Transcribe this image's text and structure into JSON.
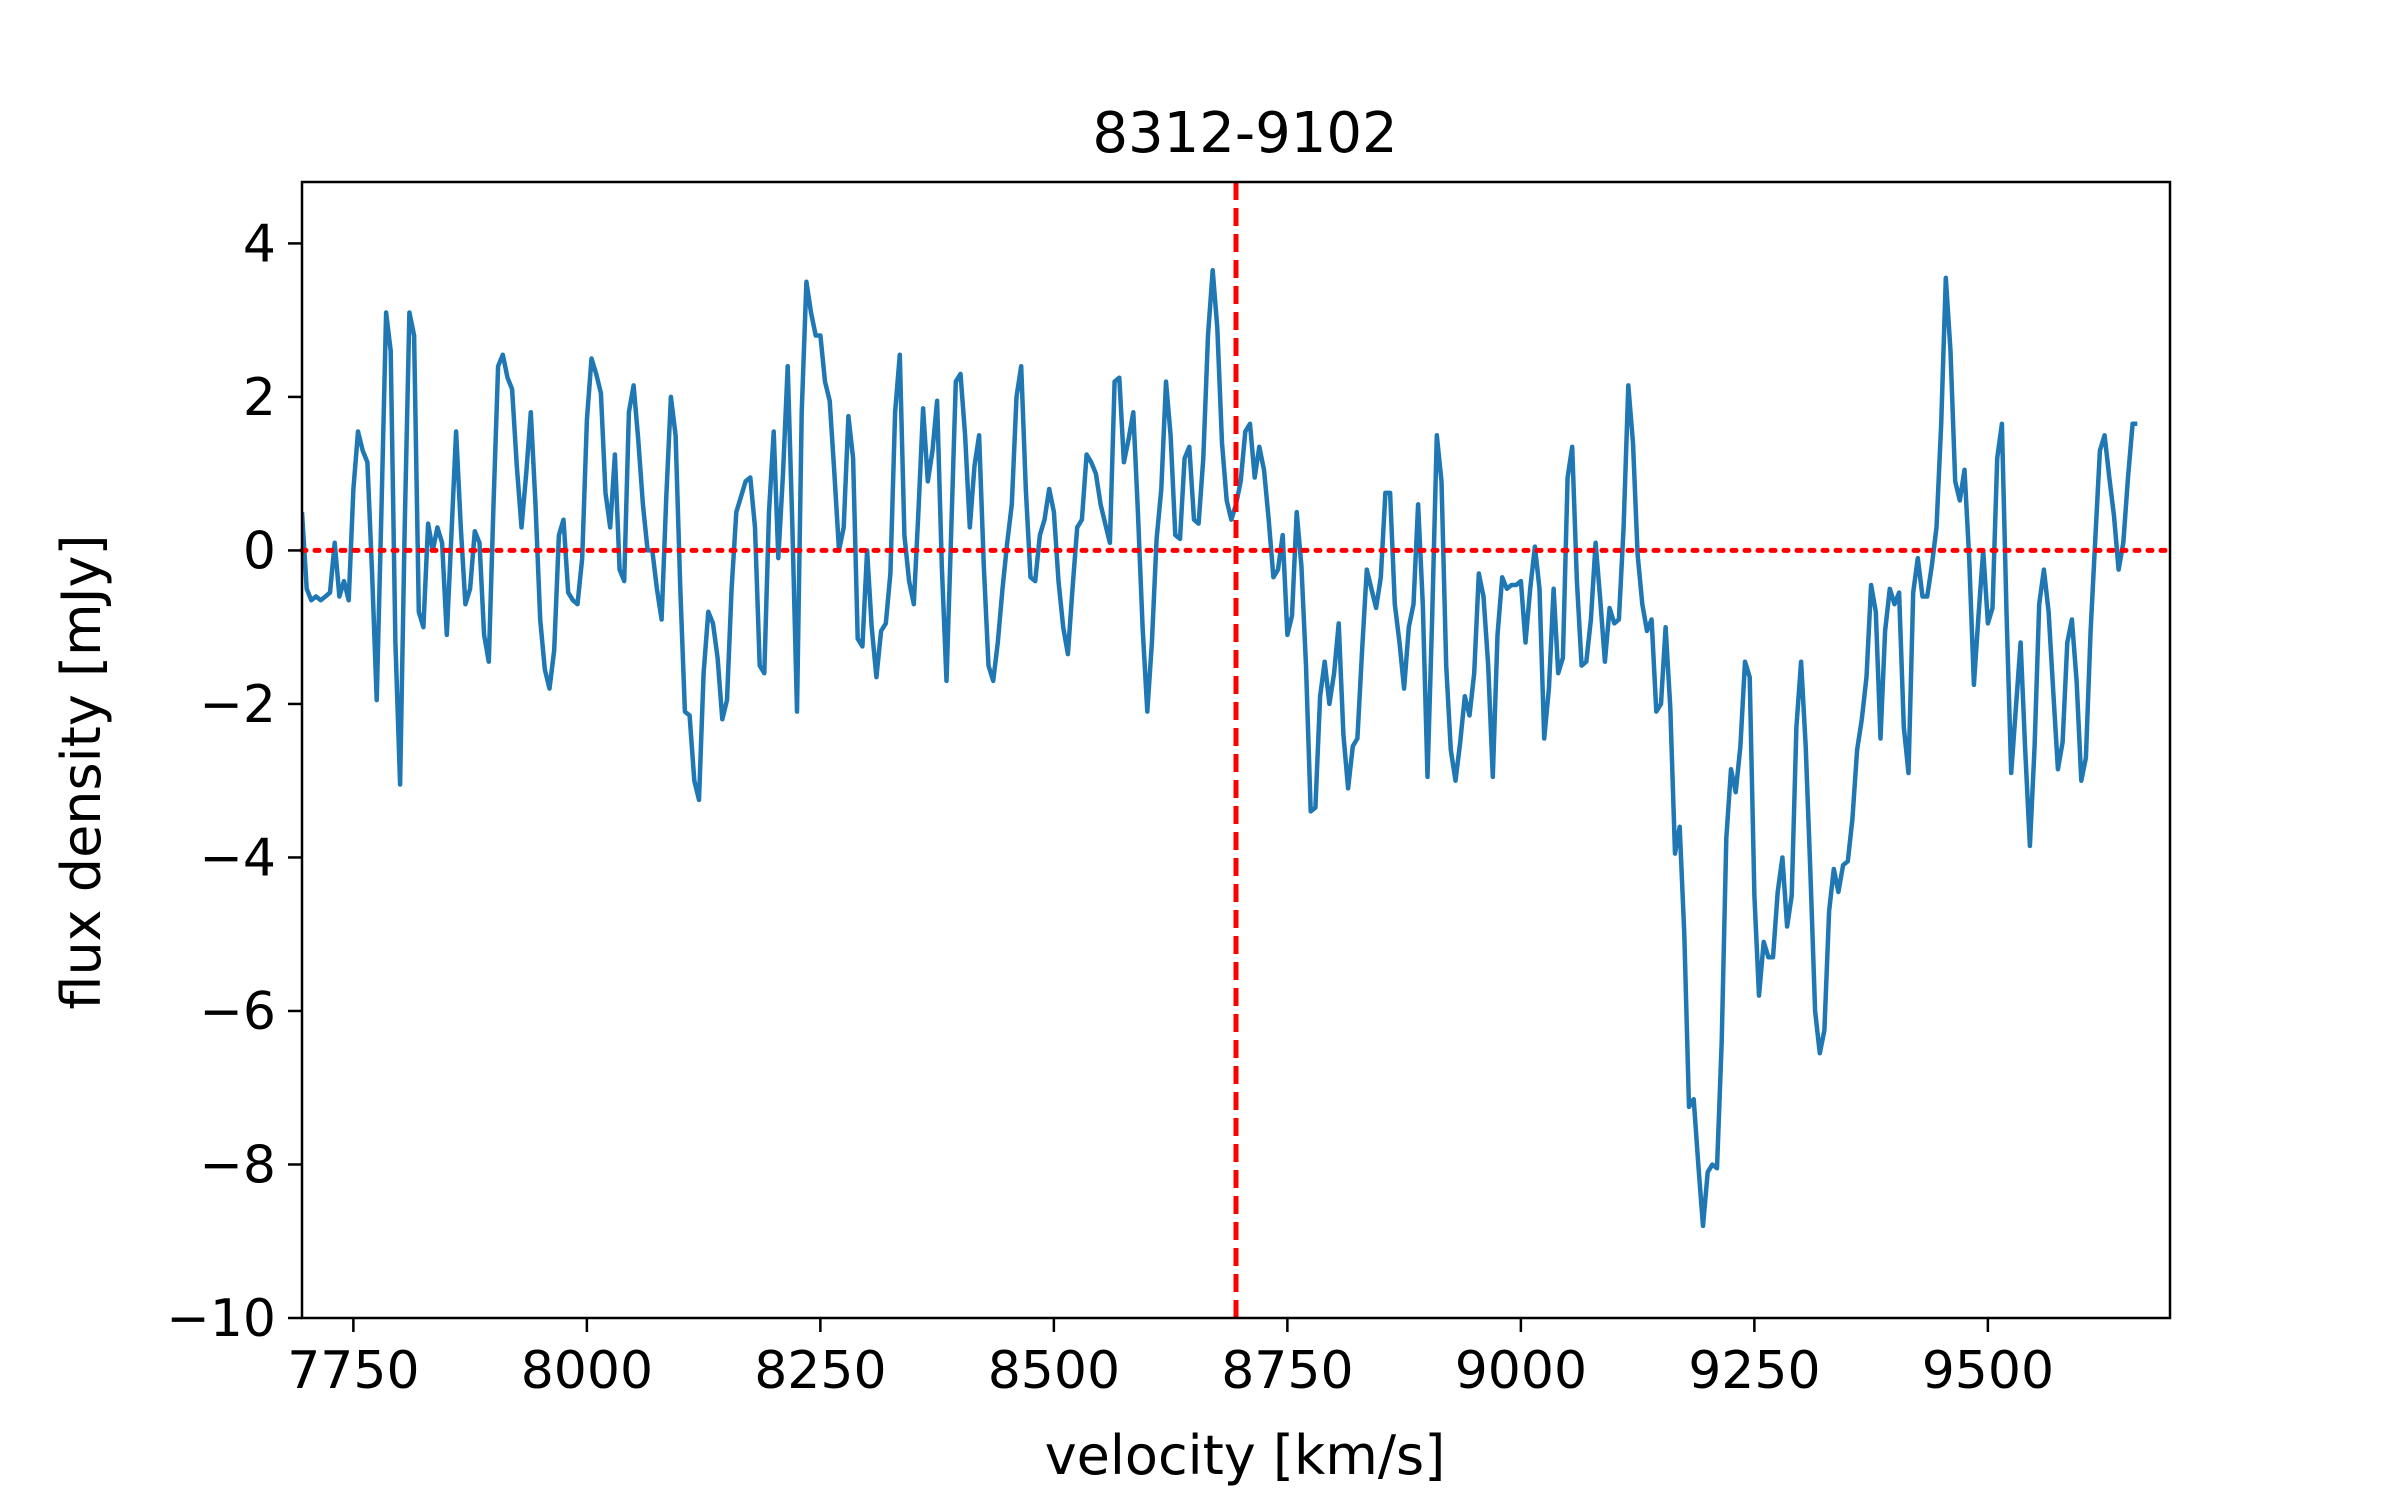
{
  "chart_data": {
    "type": "line",
    "title": "8312-9102",
    "xlabel": "velocity [km/s]",
    "ylabel": "flux density [mJy]",
    "xlim": [
      7695,
      9695
    ],
    "ylim": [
      -10,
      4.8
    ],
    "x_ticks": [
      7750,
      8000,
      8250,
      8500,
      8750,
      9000,
      9250,
      9500
    ],
    "y_ticks": [
      4,
      2,
      0,
      -2,
      -4,
      -6,
      -8,
      -10
    ],
    "x_tick_labels": [
      "7750",
      "8000",
      "8250",
      "8500",
      "8750",
      "9000",
      "9250",
      "9500"
    ],
    "y_tick_labels": [
      "4",
      "2",
      "0",
      "−2",
      "−4",
      "−6",
      "−8",
      "−10"
    ],
    "grid": false,
    "reference_lines": [
      {
        "orientation": "vertical",
        "value": 8695,
        "style": "dashed",
        "color": "#ff0000"
      },
      {
        "orientation": "horizontal",
        "value": 0,
        "style": "dotted",
        "color": "#ff0000"
      }
    ],
    "series": [
      {
        "color": "#1f77b4",
        "x_start": 7695,
        "x_step": 5,
        "y": [
          0.5,
          -0.5,
          -0.65,
          -0.6,
          -0.65,
          -0.6,
          -0.55,
          0.1,
          -0.6,
          -0.4,
          -0.65,
          0.8,
          1.55,
          1.3,
          1.15,
          -0.3,
          -1.95,
          0.5,
          3.1,
          2.6,
          -1.2,
          -3.05,
          0.3,
          3.1,
          2.8,
          -0.8,
          -1.0,
          0.35,
          0.0,
          0.3,
          0.1,
          -1.1,
          0.2,
          1.55,
          0.3,
          -0.7,
          -0.5,
          0.25,
          0.1,
          -1.1,
          -1.45,
          0.6,
          2.4,
          2.55,
          2.25,
          2.1,
          1.1,
          0.3,
          1.0,
          1.8,
          0.6,
          -0.9,
          -1.55,
          -1.8,
          -1.3,
          0.2,
          0.4,
          -0.55,
          -0.65,
          -0.7,
          -0.1,
          1.7,
          2.5,
          2.3,
          2.05,
          0.75,
          0.3,
          1.25,
          -0.25,
          -0.4,
          1.8,
          2.15,
          1.45,
          0.6,
          0.0,
          0.0,
          -0.5,
          -0.9,
          0.7,
          2.0,
          1.5,
          -0.5,
          -2.1,
          -2.15,
          -3.0,
          -3.25,
          -1.6,
          -0.8,
          -0.95,
          -1.4,
          -2.2,
          -1.95,
          -0.5,
          0.5,
          0.7,
          0.9,
          0.95,
          0.3,
          -1.5,
          -1.6,
          0.5,
          1.55,
          -0.1,
          1.0,
          2.4,
          0.3,
          -2.1,
          1.8,
          3.5,
          3.1,
          2.8,
          2.8,
          2.2,
          1.95,
          1.0,
          0.0,
          0.3,
          1.75,
          1.2,
          -1.15,
          -1.25,
          0.0,
          -1.0,
          -1.65,
          -1.05,
          -0.95,
          -0.3,
          1.8,
          2.55,
          0.2,
          -0.4,
          -0.7,
          0.5,
          1.85,
          0.9,
          1.3,
          1.95,
          -0.2,
          -1.7,
          0.2,
          2.2,
          2.3,
          1.5,
          0.3,
          1.1,
          1.5,
          -0.2,
          -1.5,
          -1.7,
          -1.2,
          -0.5,
          0.1,
          0.6,
          2.0,
          2.4,
          0.8,
          -0.35,
          -0.4,
          0.2,
          0.4,
          0.8,
          0.5,
          -0.4,
          -1.0,
          -1.35,
          -0.5,
          0.3,
          0.4,
          1.25,
          1.15,
          1.0,
          0.6,
          0.35,
          0.1,
          2.2,
          2.25,
          1.15,
          1.45,
          1.8,
          0.5,
          -1.0,
          -2.1,
          -1.2,
          0.15,
          0.8,
          2.2,
          1.5,
          0.2,
          0.15,
          1.2,
          1.35,
          0.4,
          0.35,
          1.2,
          2.8,
          3.65,
          2.9,
          1.4,
          0.65,
          0.4,
          0.6,
          0.9,
          1.55,
          1.65,
          0.95,
          1.35,
          1.05,
          0.4,
          -0.35,
          -0.25,
          0.2,
          -1.1,
          -0.85,
          0.5,
          -0.2,
          -1.5,
          -3.4,
          -3.35,
          -1.9,
          -1.45,
          -2.0,
          -1.6,
          -0.95,
          -2.4,
          -3.1,
          -2.55,
          -2.45,
          -1.3,
          -0.25,
          -0.5,
          -0.75,
          -0.35,
          0.75,
          0.75,
          -0.7,
          -1.2,
          -1.8,
          -1.0,
          -0.7,
          0.6,
          -0.7,
          -2.95,
          -0.9,
          1.5,
          0.9,
          -1.5,
          -2.6,
          -3.0,
          -2.5,
          -1.9,
          -2.15,
          -1.6,
          -0.3,
          -0.6,
          -1.5,
          -2.95,
          -1.1,
          -0.35,
          -0.5,
          -0.45,
          -0.45,
          -0.4,
          -1.2,
          -0.5,
          0.05,
          -0.5,
          -2.45,
          -1.8,
          -0.5,
          -1.6,
          -1.4,
          0.95,
          1.35,
          -0.4,
          -1.5,
          -1.45,
          -0.9,
          0.1,
          -0.65,
          -1.45,
          -0.75,
          -0.95,
          -0.9,
          0.3,
          2.15,
          1.4,
          -0.05,
          -0.7,
          -1.05,
          -0.9,
          -2.1,
          -2.0,
          -1.0,
          -2.05,
          -3.95,
          -3.6,
          -5.0,
          -7.25,
          -7.15,
          -8.0,
          -8.8,
          -8.1,
          -8.0,
          -8.05,
          -6.4,
          -3.75,
          -2.85,
          -3.15,
          -2.55,
          -1.45,
          -1.65,
          -4.5,
          -5.8,
          -5.1,
          -5.3,
          -5.3,
          -4.45,
          -4.0,
          -4.9,
          -4.5,
          -2.3,
          -1.45,
          -2.55,
          -4.2,
          -6.0,
          -6.55,
          -6.25,
          -4.7,
          -4.15,
          -4.45,
          -4.1,
          -4.05,
          -3.5,
          -2.6,
          -2.2,
          -1.65,
          -0.45,
          -0.8,
          -2.45,
          -1.05,
          -0.5,
          -0.7,
          -0.55,
          -2.3,
          -2.9,
          -0.55,
          -0.1,
          -0.6,
          -0.6,
          -0.2,
          0.3,
          1.65,
          3.55,
          2.6,
          0.9,
          0.65,
          1.05,
          -0.1,
          -1.75,
          -0.85,
          0.0,
          -0.95,
          -0.75,
          1.2,
          1.65,
          -0.8,
          -2.9,
          -2.05,
          -1.2,
          -2.6,
          -3.85,
          -2.55,
          -0.7,
          -0.25,
          -0.8,
          -1.85,
          -2.85,
          -2.5,
          -1.2,
          -0.9,
          -1.7,
          -3.0,
          -2.7,
          -1.05,
          0.15,
          1.3,
          1.5,
          0.95,
          0.45,
          -0.25,
          0.1,
          0.95,
          1.65,
          1.65
        ]
      }
    ]
  }
}
